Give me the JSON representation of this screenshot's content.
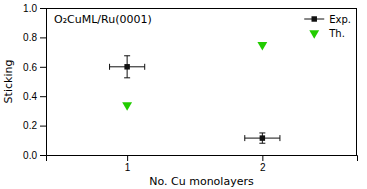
{
  "chart_data": {
    "type": "scatter",
    "xlabel": "No. Cu monolayers",
    "ylabel": "Sticking",
    "annotation": "O₂CuML/Ru(0001)",
    "xlim": [
      0.4,
      2.7
    ],
    "ylim": [
      0.0,
      1.0
    ],
    "xticks": [
      1,
      2
    ],
    "yticks": [
      {
        "value": 0.0,
        "label": "0.0"
      },
      0.2,
      0.4,
      0.6,
      0.8,
      {
        "value": 1.0,
        "label": "1.0"
      }
    ],
    "grid": false,
    "legend": "upper right",
    "series": [
      {
        "name": "Exp.",
        "color": "#111111",
        "marker": "square",
        "x": [
          1,
          2
        ],
        "values": [
          0.6,
          0.115
        ],
        "yerr": [
          0.075,
          0.035
        ],
        "xerr": [
          0.13,
          0.13
        ]
      },
      {
        "name": "Th.",
        "color": "#22cc00",
        "marker": "triangle-down",
        "x": [
          1,
          2
        ],
        "values": [
          0.34,
          0.75
        ]
      }
    ]
  }
}
